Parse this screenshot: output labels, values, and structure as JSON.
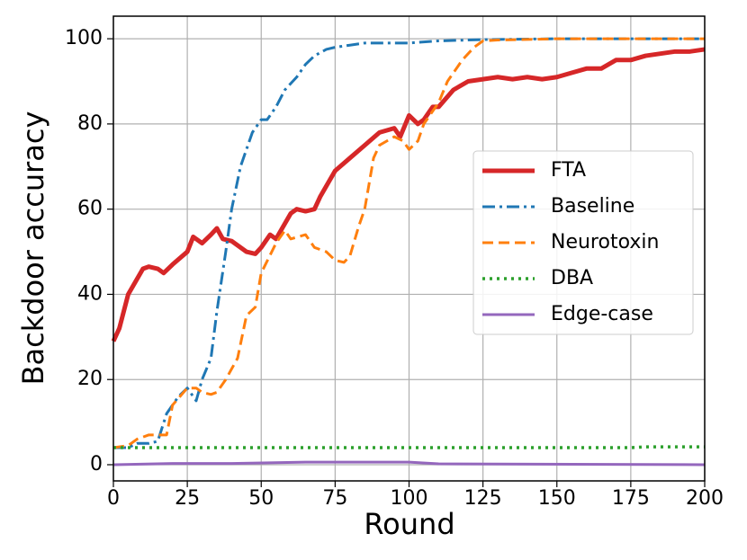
{
  "chart_data": {
    "type": "line",
    "x_label": "Round",
    "y_label": "Backdoor accuracy",
    "xlim": [
      0,
      200
    ],
    "ylim": [
      -3.8,
      105.3
    ],
    "xticks": [
      0,
      25,
      50,
      75,
      100,
      125,
      150,
      175,
      200
    ],
    "yticks": [
      0,
      20,
      40,
      60,
      80,
      100
    ],
    "grid": true,
    "legend": "right",
    "series": [
      {
        "name": "FTA",
        "color": "#d62728",
        "style": "solid",
        "width": 5,
        "x": [
          0,
          2,
          5,
          10,
          12,
          15,
          17,
          20,
          25,
          27,
          30,
          33,
          35,
          37,
          40,
          45,
          48,
          50,
          53,
          55,
          60,
          62,
          65,
          68,
          70,
          75,
          80,
          85,
          90,
          95,
          97,
          100,
          103,
          105,
          108,
          110,
          115,
          120,
          125,
          130,
          135,
          140,
          145,
          150,
          155,
          160,
          165,
          170,
          175,
          180,
          185,
          190,
          195,
          200
        ],
        "values": [
          29,
          32,
          40,
          46,
          46.5,
          46,
          45,
          47,
          50,
          53.5,
          52,
          54,
          55.5,
          53,
          52.5,
          50,
          49.5,
          51,
          54,
          53,
          59,
          60,
          59.5,
          60,
          63,
          69,
          72,
          75,
          78,
          79,
          77,
          82,
          80,
          81,
          84,
          84,
          88,
          90,
          90.5,
          91,
          90.5,
          91,
          90.5,
          91,
          92,
          93,
          93,
          95,
          95,
          96,
          96.5,
          97,
          97,
          97.5
        ]
      },
      {
        "name": "Baseline",
        "color": "#1f77b4",
        "style": "dashdot",
        "width": 3,
        "x": [
          0,
          5,
          8,
          12,
          15,
          18,
          22,
          25,
          28,
          30,
          33,
          35,
          38,
          40,
          43,
          47,
          50,
          52,
          55,
          58,
          62,
          65,
          68,
          72,
          75,
          80,
          85,
          90,
          100,
          110,
          125,
          150,
          200
        ],
        "values": [
          4,
          4,
          5,
          5,
          5.5,
          12,
          16,
          18,
          15,
          20,
          25,
          36,
          50,
          60,
          70,
          78,
          81,
          81,
          84,
          88,
          91,
          94,
          96,
          97.5,
          98,
          98.5,
          99,
          99,
          99,
          99.5,
          99.8,
          100,
          100
        ]
      },
      {
        "name": "Neurotoxin",
        "color": "#ff7f0e",
        "style": "dashed",
        "width": 3,
        "x": [
          0,
          5,
          8,
          12,
          15,
          18,
          20,
          25,
          28,
          30,
          33,
          35,
          38,
          42,
          45,
          48,
          50,
          55,
          58,
          60,
          65,
          68,
          72,
          75,
          78,
          80,
          83,
          85,
          88,
          90,
          95,
          98,
          100,
          103,
          105,
          110,
          113,
          118,
          122,
          125,
          130,
          150,
          200
        ],
        "values": [
          4,
          4.5,
          6,
          7,
          7,
          7,
          14,
          18,
          18,
          17,
          16.5,
          17,
          20,
          25,
          35,
          37,
          45,
          52,
          55,
          53,
          54,
          51,
          50,
          48,
          47.5,
          49,
          56,
          60,
          72,
          75,
          77,
          76,
          74,
          76,
          80,
          85,
          90,
          95,
          98,
          99.5,
          99.7,
          100,
          100
        ]
      },
      {
        "name": "DBA",
        "color": "#2ca02c",
        "style": "dotted",
        "width": 3.5,
        "x": [
          0,
          100,
          175,
          180,
          200
        ],
        "values": [
          4,
          4,
          4,
          4.2,
          4.2
        ]
      },
      {
        "name": "Edge-case",
        "color": "#9467bd",
        "style": "solid",
        "width": 3,
        "x": [
          0,
          20,
          40,
          65,
          100,
          110,
          200
        ],
        "values": [
          0,
          0.3,
          0.3,
          0.6,
          0.6,
          0.2,
          0
        ]
      }
    ]
  }
}
